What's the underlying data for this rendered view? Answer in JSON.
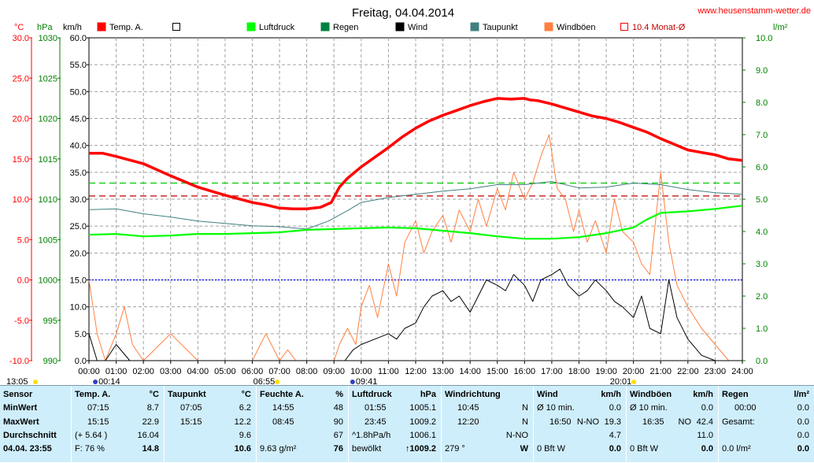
{
  "header": {
    "title": "Freitag, 04.04.2014",
    "website": "www.heusenstamm-wetter.de"
  },
  "axis_units": {
    "temp": "°C",
    "pressure": "hPa",
    "wind": "km/h",
    "rain": "l/m²"
  },
  "legend": [
    {
      "label": "Temp. A.",
      "color": "#ff0000",
      "style": "solid"
    },
    {
      "label": "",
      "color": "#ffffff",
      "style": "box"
    },
    {
      "label": "Luftdruck",
      "color": "#00ff00",
      "style": "solid"
    },
    {
      "label": "Regen",
      "color": "#008040",
      "style": "solid"
    },
    {
      "label": "Wind",
      "color": "#000000",
      "style": "solid"
    },
    {
      "label": "Taupunkt",
      "color": "#408080",
      "style": "solid"
    },
    {
      "label": "Windböen",
      "color": "#ff8040",
      "style": "solid"
    },
    {
      "label": "10.4 Monat-Ø",
      "color": "#ff0000",
      "style": "hollow"
    }
  ],
  "events": {
    "sunrise": "06:55",
    "sunset": "20:01",
    "moonset": "00:14",
    "moonrise": "09:41",
    "moon_left": "13:05"
  },
  "chart_data": {
    "type": "line",
    "title": "Freitag, 04.04.2014",
    "x_ticks": [
      "00:00",
      "01:00",
      "02:00",
      "03:00",
      "04:00",
      "05:00",
      "06:00",
      "07:00",
      "08:00",
      "09:00",
      "10:00",
      "11:00",
      "12:00",
      "13:00",
      "14:00",
      "15:00",
      "16:00",
      "17:00",
      "18:00",
      "19:00",
      "20:00",
      "21:00",
      "22:00",
      "23:00",
      "24:00"
    ],
    "xlim_hours": [
      0,
      24
    ],
    "grid": true,
    "axes": {
      "temp": {
        "label": "°C",
        "min": -10,
        "max": 30,
        "ticks": [
          "30.0",
          "25.0",
          "20.0",
          "15.0",
          "10.0",
          "5.0",
          "0.0",
          "-5.0",
          "-10.0"
        ]
      },
      "pressure": {
        "label": "hPa",
        "min": 990,
        "max": 1030,
        "ticks": [
          "1030",
          "1025",
          "1020",
          "1015",
          "1010",
          "1005",
          "1000",
          "995",
          "990"
        ]
      },
      "wind": {
        "label": "km/h",
        "min": 0,
        "max": 60,
        "ticks": [
          "60.0",
          "55.0",
          "50.0",
          "45.0",
          "40.0",
          "35.0",
          "30.0",
          "25.0",
          "20.0",
          "15.0",
          "10.0",
          "5.0",
          "0.0"
        ]
      },
      "rain": {
        "label": "l/m²",
        "min": 0,
        "max": 10,
        "ticks": [
          "10.0",
          "9.0",
          "8.0",
          "7.0",
          "6.0",
          "5.0",
          "4.0",
          "3.0",
          "2.0",
          "1.0",
          "0.0"
        ]
      }
    },
    "reference_lines": [
      {
        "axis": "temp",
        "value": 0,
        "color": "#0000ff"
      },
      {
        "axis": "temp",
        "value": 10.4,
        "color": "#c00000"
      },
      {
        "axis": "pressure",
        "value": 1012,
        "color": "#00cc00"
      }
    ],
    "series": [
      {
        "name": "Temp. A.",
        "axis": "temp",
        "color": "#ff0000",
        "width": 3.5,
        "x": [
          0,
          0.5,
          1,
          2,
          3,
          4,
          5,
          6,
          6.5,
          7,
          7.5,
          8,
          8.5,
          8.9,
          9.2,
          9.5,
          10,
          10.5,
          11,
          11.5,
          12,
          12.5,
          13,
          13.5,
          14,
          14.5,
          15,
          15.5,
          16,
          16.2,
          16.5,
          17,
          17.5,
          18,
          18.5,
          19,
          19.5,
          20,
          20.5,
          21,
          21.5,
          22,
          22.5,
          23,
          23.5,
          24
        ],
        "y": [
          15.7,
          15.7,
          15.3,
          14.4,
          12.9,
          11.5,
          10.5,
          9.6,
          9.3,
          8.9,
          8.8,
          8.8,
          9.0,
          9.6,
          11.5,
          12.6,
          14.0,
          15.2,
          16.4,
          17.7,
          18.8,
          19.7,
          20.4,
          21.0,
          21.6,
          22.1,
          22.5,
          22.4,
          22.5,
          22.3,
          22.2,
          21.8,
          21.3,
          20.8,
          20.3,
          20.0,
          19.5,
          18.9,
          18.3,
          17.5,
          16.8,
          16.1,
          15.8,
          15.5,
          15.0,
          14.8
        ]
      },
      {
        "name": "Taupunkt",
        "axis": "temp",
        "color": "#408080",
        "width": 1,
        "x": [
          0,
          1,
          2,
          3,
          4,
          5,
          6,
          7,
          8,
          8.8,
          9.5,
          10,
          11,
          12,
          13,
          14,
          15,
          16,
          17,
          18,
          19,
          20,
          21,
          22,
          23,
          24
        ],
        "y": [
          8.7,
          8.8,
          8.2,
          7.8,
          7.3,
          7.0,
          6.7,
          6.6,
          6.3,
          7.3,
          8.6,
          9.6,
          10.2,
          10.6,
          11.0,
          11.3,
          11.8,
          11.8,
          12.2,
          11.4,
          11.5,
          12.0,
          11.8,
          11.2,
          10.8,
          10.6
        ]
      },
      {
        "name": "Luftdruck",
        "axis": "pressure",
        "color": "#00ff00",
        "width": 2.2,
        "x": [
          0,
          1,
          2,
          3,
          4,
          5,
          6,
          7,
          8,
          9,
          10,
          11,
          12,
          13,
          14,
          15,
          16,
          17,
          18,
          19,
          20,
          20.5,
          21,
          22,
          23,
          24
        ],
        "y": [
          1005.6,
          1005.7,
          1005.4,
          1005.5,
          1005.7,
          1005.7,
          1005.8,
          1005.9,
          1006.2,
          1006.3,
          1006.4,
          1006.5,
          1006.4,
          1006.1,
          1005.8,
          1005.4,
          1005.1,
          1005.1,
          1005.3,
          1005.8,
          1006.5,
          1007.5,
          1008.3,
          1008.5,
          1008.8,
          1009.2
        ]
      },
      {
        "name": "Wind",
        "axis": "wind",
        "color": "#000000",
        "width": 1,
        "x": [
          0,
          0.3,
          0.6,
          1,
          1.5,
          2,
          3,
          4,
          5,
          6,
          7,
          8,
          9,
          9.4,
          9.7,
          10,
          10.5,
          11,
          11.3,
          11.6,
          12,
          12.3,
          12.6,
          13,
          13.3,
          13.6,
          14,
          14.3,
          14.6,
          15,
          15.3,
          15.6,
          16,
          16.3,
          16.6,
          17,
          17.3,
          17.6,
          18,
          18.3,
          18.6,
          19,
          19.3,
          19.6,
          20,
          20.3,
          20.6,
          21,
          21.3,
          21.6,
          22,
          22.5,
          23,
          23.5,
          24
        ],
        "y": [
          5,
          0,
          0,
          3,
          0,
          0,
          0,
          0,
          0,
          0,
          0,
          0,
          0,
          0,
          2,
          3,
          4,
          5,
          4,
          6,
          7,
          10,
          12,
          13,
          11,
          12,
          9,
          12,
          15,
          14,
          13,
          16,
          14,
          11,
          15,
          16,
          17,
          14,
          12,
          13,
          15,
          13,
          11,
          10,
          8,
          12,
          6,
          5,
          15,
          8,
          4,
          1,
          0,
          0,
          0
        ]
      },
      {
        "name": "Windböen",
        "axis": "wind",
        "color": "#ff8040",
        "width": 1,
        "x": [
          0,
          0.3,
          0.6,
          1,
          1.3,
          1.6,
          2,
          3,
          4,
          5,
          6,
          6.5,
          7,
          7.3,
          7.6,
          8,
          9,
          9.2,
          9.5,
          9.8,
          10,
          10.3,
          10.6,
          11,
          11.3,
          11.6,
          12,
          12.3,
          12.6,
          13,
          13.3,
          13.6,
          14,
          14.3,
          14.6,
          15,
          15.3,
          15.6,
          16,
          16.3,
          16.6,
          16.9,
          17.2,
          17.5,
          17.8,
          18,
          18.3,
          18.6,
          19,
          19.3,
          19.6,
          20,
          20.3,
          20.6,
          21,
          21.3,
          21.6,
          22,
          22.5,
          23,
          23.5,
          24
        ],
        "y": [
          15,
          5,
          0,
          5,
          10,
          3,
          0,
          5,
          0,
          0,
          0,
          5,
          0,
          2,
          0,
          0,
          0,
          3,
          6,
          3,
          10,
          14,
          8,
          18,
          12,
          22,
          26,
          20,
          24,
          27,
          22,
          28,
          24,
          30,
          25,
          32,
          28,
          35,
          30,
          33,
          38,
          42,
          32,
          30,
          24,
          28,
          22,
          26,
          20,
          30,
          24,
          22,
          18,
          16,
          35,
          22,
          14,
          10,
          6,
          3,
          0,
          0
        ]
      }
    ]
  },
  "table": {
    "row_labels": [
      "Sensor",
      "MinWert",
      "MaxWert",
      "Durchschnitt",
      "04.04. 23:55"
    ],
    "temp": {
      "title": "Temp. A.",
      "unit": "°C",
      "min": {
        "time": "07:15",
        "value": "8.7"
      },
      "max": {
        "time": "15:15",
        "value": "22.9"
      },
      "avg": {
        "extra": "(+ 5.64 )",
        "value": "16.04"
      },
      "now": {
        "extra": "F: 76 %",
        "value": "14.8"
      }
    },
    "dew": {
      "title": "Taupunkt",
      "unit": "°C",
      "min": {
        "time": "07:05",
        "value": "6.2"
      },
      "max": {
        "time": "15:15",
        "value": "12.2"
      },
      "avg": {
        "value": "9.6"
      },
      "now": {
        "value": "10.6"
      }
    },
    "hum": {
      "title": "Feuchte A.",
      "unit": "%",
      "min": {
        "time": "14:55",
        "value": "48"
      },
      "max": {
        "time": "08:45",
        "value": "90"
      },
      "avg": {
        "value": "67"
      },
      "now": {
        "extra": "9.63 g/m²",
        "value": "76"
      }
    },
    "press": {
      "title": "Luftdruck",
      "unit": "hPa",
      "min": {
        "time": "01:55",
        "value": "1005.1"
      },
      "max": {
        "time": "23:45",
        "value": "1009.2"
      },
      "avg": {
        "extra": "^1.8hPa/h",
        "value": "1006.1"
      },
      "now": {
        "extra": "bewölkt",
        "value": "↑1009.2"
      }
    },
    "winddir": {
      "title": "Windrichtung",
      "min": {
        "time": "10:45",
        "value": "N"
      },
      "max": {
        "time": "12:20",
        "value": "N"
      },
      "avg": {
        "value": "N-NO"
      },
      "now": {
        "extra": "279 °",
        "value": "W"
      }
    },
    "wind": {
      "title": "Wind",
      "unit": "km/h",
      "min": {
        "time": "Ø 10 min.",
        "value": "0.0"
      },
      "max": {
        "time": "16:50",
        "dir": "N-NO",
        "value": "19.3"
      },
      "avg": {
        "value": "4.7"
      },
      "now": {
        "extra": "0 Bft W",
        "value": "0.0"
      }
    },
    "gust": {
      "title": "Windböen",
      "unit": "km/h",
      "min": {
        "time": "Ø 10 min.",
        "value": "0.0"
      },
      "max": {
        "time": "16:35",
        "dir": "NO",
        "value": "42.4"
      },
      "avg": {
        "value": "11.0"
      },
      "now": {
        "extra": "0 Bft W",
        "value": "0.0"
      }
    },
    "rain": {
      "title": "Regen",
      "unit": "l/m²",
      "min": {
        "time": "00:00",
        "value": "0.0"
      },
      "max": {
        "time": "Gesamt:",
        "value": "0.0"
      },
      "avg": {
        "value": "0.0"
      },
      "now": {
        "extra": "0.0 l/m²",
        "value": "0.0"
      }
    }
  }
}
